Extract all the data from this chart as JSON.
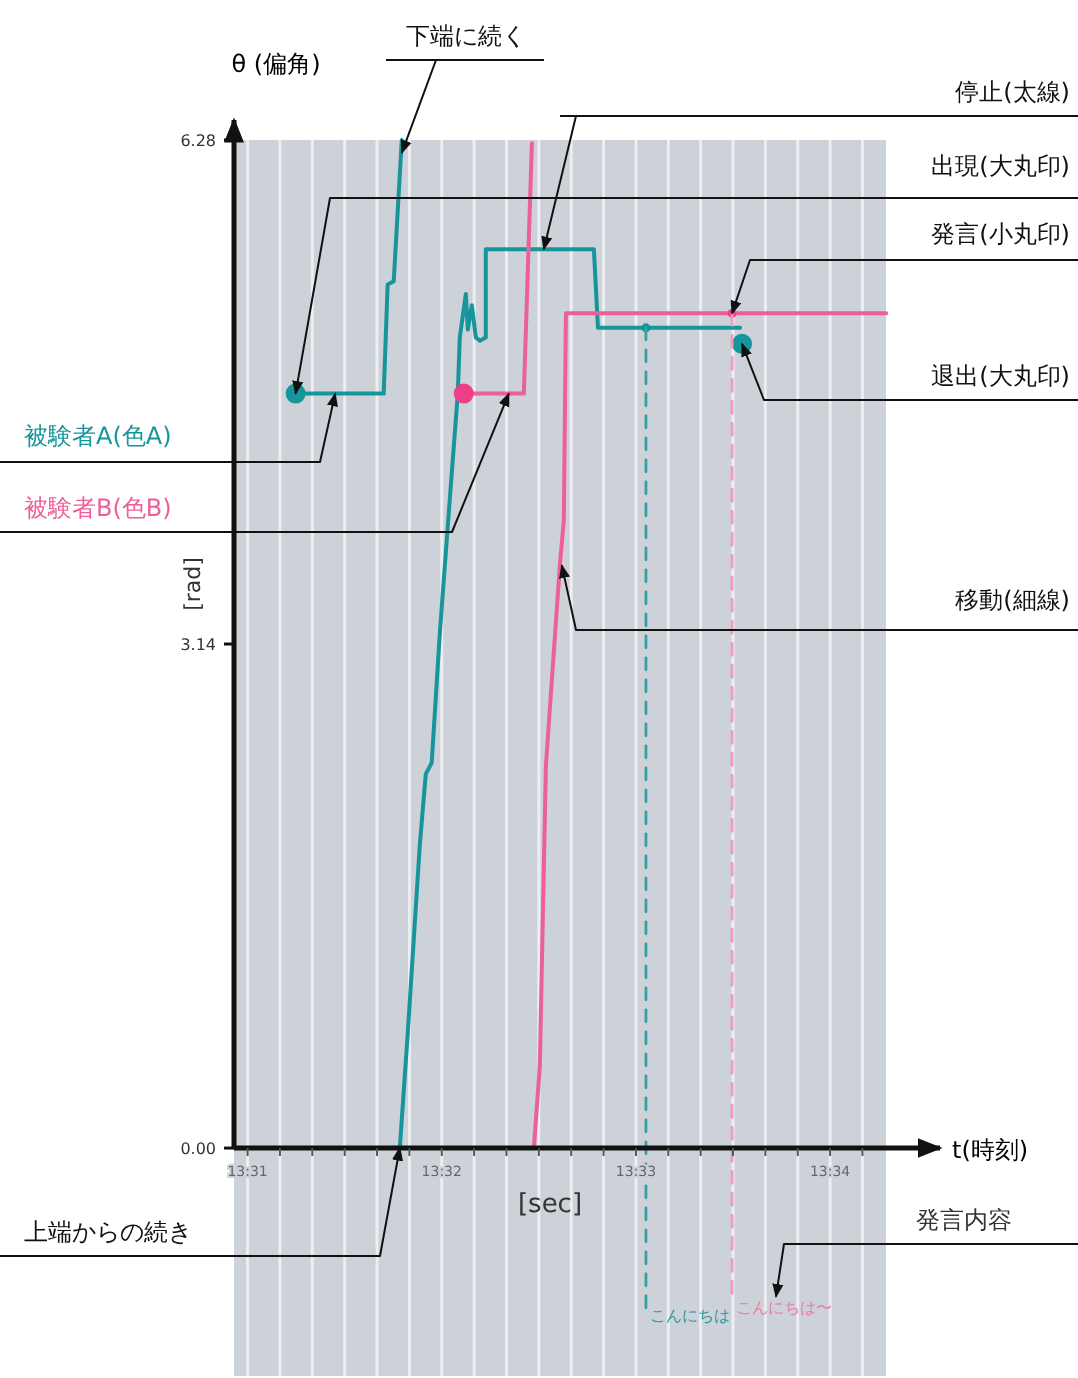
{
  "chart_data": {
    "type": "line",
    "ylabel": "θ (偏角)",
    "xlabel": "t(時刻)",
    "xlim": [
      13.5155,
      13.5761
    ],
    "ylim": [
      -1.42,
      6.28
    ],
    "xticks": [
      {
        "value": 13.516667,
        "label": "13:31"
      },
      {
        "value": 13.519444,
        "label": null
      },
      {
        "value": 13.522222,
        "label": null
      },
      {
        "value": 13.525,
        "label": null
      },
      {
        "value": 13.527778,
        "label": null
      },
      {
        "value": 13.530556,
        "label": null
      },
      {
        "value": 13.533333,
        "label": "13:32"
      },
      {
        "value": 13.536111,
        "label": null
      },
      {
        "value": 13.538889,
        "label": null
      },
      {
        "value": 13.541667,
        "label": null
      },
      {
        "value": 13.544444,
        "label": null
      },
      {
        "value": 13.547222,
        "label": null
      },
      {
        "value": 13.55,
        "label": "13:33"
      },
      {
        "value": 13.552778,
        "label": null
      },
      {
        "value": 13.555556,
        "label": null
      },
      {
        "value": 13.558333,
        "label": null
      },
      {
        "value": 13.561111,
        "label": null
      },
      {
        "value": 13.563889,
        "label": null
      },
      {
        "value": 13.566667,
        "label": "13:34"
      },
      {
        "value": 13.569444,
        "label": null
      }
    ],
    "yticks": [
      {
        "value": 0,
        "label": "0.00"
      },
      {
        "value": 3.14,
        "label": "3.14"
      },
      {
        "value": 6.28,
        "label": "6.28"
      }
    ],
    "grid": "x",
    "legend": false,
    "series": [
      {
        "name": "被験者A(色A)",
        "color": "#16959a",
        "x": [
          13.52079,
          13.52835,
          13.52869,
          13.52921,
          13.5299,
          null,
          13.52973,
          13.53041,
          13.53144,
          13.53196,
          13.53247,
          13.53316,
          13.53402,
          13.53471,
          13.53488,
          13.5354,
          13.53557,
          13.53591,
          13.53626,
          13.5366,
          13.53711,
          13.53711,
          13.54639,
          13.54674,
          13.55894
        ],
        "values": [
          4.7,
          4.7,
          5.38,
          5.4,
          6.28,
          null,
          0,
          0.71,
          1.88,
          2.33,
          2.4,
          3.2,
          4.04,
          4.7,
          5.05,
          5.32,
          5.1,
          5.25,
          5.05,
          5.03,
          5.05,
          5.6,
          5.6,
          5.11,
          5.11
        ]
      },
      {
        "name": "被験者B(色B)",
        "color": "#ec5f98",
        "x": [
          13.53522,
          13.54038,
          13.54107,
          null,
          13.54124,
          13.54175,
          13.54227,
          13.54347,
          13.54381,
          13.54399,
          13.57148
        ],
        "values": [
          4.7,
          4.7,
          6.26,
          null,
          0,
          0.51,
          2.38,
          3.63,
          3.91,
          5.2,
          5.2
        ]
      },
      {
        "type": "bubble",
        "color": "#16959a",
        "x": [
          13.52079,
          13.55086,
          13.55911
        ],
        "values": [
          4.7,
          5.11,
          5.01
        ],
        "sizes": [
          1,
          0.2,
          1
        ]
      },
      {
        "type": "bubble",
        "color": "#ec3f86",
        "x": [
          13.53522,
          13.55825
        ],
        "values": [
          4.7,
          5.2
        ],
        "sizes": [
          1,
          0.2
        ]
      },
      {
        "type": "line",
        "line_style": "dashed",
        "color": "#3aa0a8",
        "x": [
          13.55086,
          13.55086
        ],
        "values": [
          5.11,
          -1.0
        ]
      },
      {
        "type": "line",
        "line_style": "dashed",
        "color": "#f29bbb",
        "x": [
          13.55825,
          13.55825
        ],
        "values": [
          5.2,
          -0.95
        ]
      }
    ],
    "annotations": [
      "[rad]",
      "[sec]",
      {
        "text": "下端に続く",
        "x": 13.5299,
        "y": 6.2
      },
      {
        "text": "停止(太線)",
        "x": 13.5421,
        "y": 5.6
      },
      {
        "text": "出現(大丸印)",
        "x": 13.52079,
        "y": 4.7
      },
      {
        "text": "発言(小丸印)",
        "x": 13.55825,
        "y": 5.2
      },
      {
        "text": "退出(大丸印)",
        "x": 13.55911,
        "y": 5.01
      },
      {
        "text": "移動(細線)",
        "x": 13.54364,
        "y": 3.63
      },
      {
        "text": "上端からの続き",
        "x": 13.52973,
        "y": 0
      },
      "発言内容",
      {
        "text": "こんにちは",
        "x": 13.55086,
        "y": -1.0
      },
      {
        "text": "こんにちは〜",
        "x": 13.55825,
        "y": -0.95
      }
    ]
  }
}
